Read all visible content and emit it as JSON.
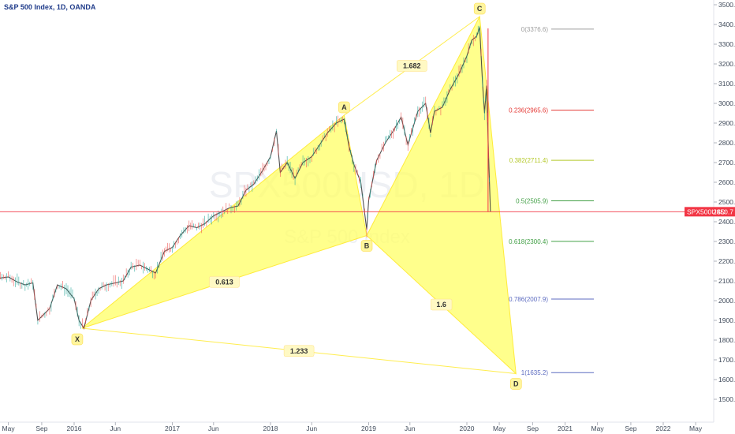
{
  "chart_data": {
    "type": "line",
    "title": "S&P 500 Index, 1D, OANDA",
    "watermark": {
      "symbol": "SPX500USD, 1D",
      "name": "S&P 500 Index"
    },
    "ylim": [
      1400,
      3520
    ],
    "y_ticks": [
      "1500.0",
      "1600.0",
      "1700.0",
      "1800.0",
      "1900.0",
      "2000.0",
      "2100.0",
      "2200.0",
      "2300.0",
      "2400.0",
      "2500.0",
      "2600.0",
      "2700.0",
      "2800.0",
      "2900.0",
      "3000.0",
      "3100.0",
      "3200.0",
      "3300.0",
      "3400.0",
      "3500.0"
    ],
    "x_ticks": [
      {
        "label": "May",
        "t": 2015.33
      },
      {
        "label": "Sep",
        "t": 2015.67
      },
      {
        "label": "2016",
        "t": 2016.0
      },
      {
        "label": "Jun",
        "t": 2016.42
      },
      {
        "label": "2017",
        "t": 2017.0
      },
      {
        "label": "Jun",
        "t": 2017.42
      },
      {
        "label": "2018",
        "t": 2018.0
      },
      {
        "label": "Jun",
        "t": 2018.42
      },
      {
        "label": "2019",
        "t": 2019.0
      },
      {
        "label": "Jun",
        "t": 2019.42
      },
      {
        "label": "2020",
        "t": 2020.0
      },
      {
        "label": "May",
        "t": 2020.33
      },
      {
        "label": "Sep",
        "t": 2020.67
      },
      {
        "label": "2021",
        "t": 2021.0
      },
      {
        "label": "May",
        "t": 2021.33
      },
      {
        "label": "Sep",
        "t": 2021.67
      },
      {
        "label": "2022",
        "t": 2022.0
      },
      {
        "label": "May",
        "t": 2022.33
      }
    ],
    "series": [
      {
        "points": [
          [
            2015.0,
            2090
          ],
          [
            2015.08,
            2110
          ],
          [
            2015.17,
            2105
          ],
          [
            2015.25,
            2115
          ],
          [
            2015.33,
            2120
          ],
          [
            2015.42,
            2095
          ],
          [
            2015.5,
            2080
          ],
          [
            2015.58,
            2090
          ],
          [
            2015.63,
            1900
          ],
          [
            2015.67,
            1920
          ],
          [
            2015.75,
            1960
          ],
          [
            2015.83,
            2080
          ],
          [
            2015.92,
            2060
          ],
          [
            2016.0,
            2010
          ],
          [
            2016.05,
            1900
          ],
          [
            2016.1,
            1860
          ],
          [
            2016.17,
            2000
          ],
          [
            2016.25,
            2060
          ],
          [
            2016.33,
            2080
          ],
          [
            2016.42,
            2090
          ],
          [
            2016.5,
            2100
          ],
          [
            2016.58,
            2170
          ],
          [
            2016.67,
            2180
          ],
          [
            2016.75,
            2160
          ],
          [
            2016.83,
            2140
          ],
          [
            2016.92,
            2250
          ],
          [
            2017.0,
            2270
          ],
          [
            2017.08,
            2330
          ],
          [
            2017.17,
            2380
          ],
          [
            2017.25,
            2370
          ],
          [
            2017.33,
            2390
          ],
          [
            2017.42,
            2430
          ],
          [
            2017.5,
            2450
          ],
          [
            2017.58,
            2470
          ],
          [
            2017.67,
            2480
          ],
          [
            2017.75,
            2560
          ],
          [
            2017.83,
            2590
          ],
          [
            2017.92,
            2660
          ],
          [
            2018.0,
            2730
          ],
          [
            2018.06,
            2860
          ],
          [
            2018.1,
            2650
          ],
          [
            2018.17,
            2700
          ],
          [
            2018.25,
            2620
          ],
          [
            2018.33,
            2700
          ],
          [
            2018.42,
            2730
          ],
          [
            2018.5,
            2790
          ],
          [
            2018.58,
            2850
          ],
          [
            2018.67,
            2900
          ],
          [
            2018.75,
            2920
          ],
          [
            2018.8,
            2780
          ],
          [
            2018.85,
            2690
          ],
          [
            2018.92,
            2600
          ],
          [
            2018.98,
            2360
          ],
          [
            2019.0,
            2510
          ],
          [
            2019.08,
            2710
          ],
          [
            2019.17,
            2800
          ],
          [
            2019.25,
            2860
          ],
          [
            2019.33,
            2930
          ],
          [
            2019.4,
            2790
          ],
          [
            2019.5,
            2960
          ],
          [
            2019.58,
            3000
          ],
          [
            2019.63,
            2850
          ],
          [
            2019.67,
            2960
          ],
          [
            2019.75,
            2980
          ],
          [
            2019.83,
            3070
          ],
          [
            2019.92,
            3150
          ],
          [
            2020.0,
            3240
          ],
          [
            2020.05,
            3320
          ],
          [
            2020.1,
            3340
          ],
          [
            2020.13,
            3386
          ],
          [
            2020.16,
            3100
          ],
          [
            2020.18,
            2950
          ],
          [
            2020.2,
            3090
          ],
          [
            2020.22,
            2750
          ],
          [
            2020.24,
            2450
          ]
        ]
      }
    ],
    "harmonic_pattern": {
      "points": [
        {
          "label": "X",
          "t": 2016.08,
          "v": 1860
        },
        {
          "label": "A",
          "t": 2018.75,
          "v": 2940
        },
        {
          "label": "B",
          "t": 2018.98,
          "v": 2330
        },
        {
          "label": "C",
          "t": 2020.13,
          "v": 3440
        },
        {
          "label": "D",
          "t": 2020.5,
          "v": 1630
        }
      ],
      "ratios": [
        {
          "label": "1.682",
          "between": "A-C"
        },
        {
          "label": "0.613",
          "between": "X-B"
        },
        {
          "label": "1.6",
          "between": "B-D"
        },
        {
          "label": "1.233",
          "between": "X-D"
        }
      ]
    },
    "fib_levels": [
      {
        "label": "0(3376.6)",
        "value": 3376.6,
        "color": "#9e9e9e"
      },
      {
        "label": "0.236(2965.6)",
        "value": 2965.6,
        "color": "#e53935"
      },
      {
        "label": "0.382(2711.4)",
        "value": 2711.4,
        "color": "#b5c92a"
      },
      {
        "label": "0.5(2505.9)",
        "value": 2505.9,
        "color": "#43a047"
      },
      {
        "label": "0.618(2300.4)",
        "value": 2300.4,
        "color": "#43a047"
      },
      {
        "label": "0.786(2007.9)",
        "value": 2007.9,
        "color": "#5c6bc0"
      },
      {
        "label": "1(1635.2)",
        "value": 1635.2,
        "color": "#5c6bc0"
      }
    ],
    "current_price": {
      "symbol": "SPX500USD",
      "value": "2450.7",
      "v": 2450.7,
      "color": "#f23645"
    },
    "colors": {
      "pattern_fill": "#ffff66",
      "pattern_stroke": "#ffeb3b",
      "price": "#333333",
      "axis_text": "#3f4a5a"
    }
  }
}
